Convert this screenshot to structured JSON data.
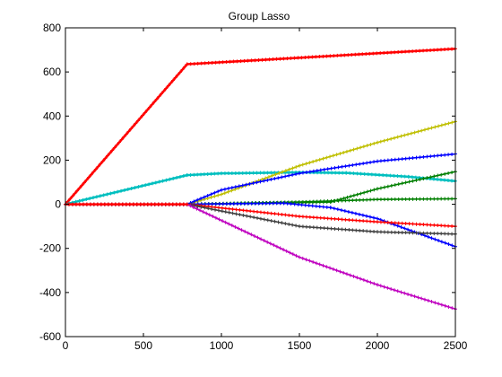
{
  "chart_data": {
    "type": "line",
    "title": "Group Lasso",
    "xlabel": "",
    "ylabel": "",
    "xlim": [
      0,
      2500
    ],
    "ylim": [
      -600,
      800
    ],
    "xticks": [
      0,
      500,
      1000,
      1500,
      2000,
      2500
    ],
    "yticks": [
      -600,
      -400,
      -200,
      0,
      200,
      400,
      600,
      800
    ],
    "grid": false,
    "legend": "none",
    "marker": "asterisk",
    "series": [
      {
        "color": "#ff0000",
        "x": [
          0,
          780,
          2500
        ],
        "values": [
          0,
          635,
          705
        ]
      },
      {
        "color": "#00bfbf",
        "x": [
          0,
          780,
          1000,
          1500,
          1800,
          2200,
          2500
        ],
        "values": [
          0,
          132,
          140,
          145,
          142,
          125,
          105
        ]
      },
      {
        "color": "#bfbf00",
        "x": [
          0,
          780,
          1000,
          1500,
          2000,
          2500
        ],
        "values": [
          0,
          0,
          45,
          175,
          280,
          375
        ]
      },
      {
        "color": "#0000ff",
        "x": [
          0,
          780,
          1000,
          1500,
          2000,
          2500
        ],
        "values": [
          0,
          0,
          65,
          140,
          195,
          228
        ]
      },
      {
        "color": "#007f00",
        "x": [
          0,
          780,
          1700,
          2000,
          2500
        ],
        "values": [
          0,
          0,
          10,
          70,
          148
        ]
      },
      {
        "color": "#007f00",
        "x": [
          0,
          780,
          1500,
          2000,
          2500
        ],
        "values": [
          0,
          0,
          10,
          22,
          25
        ]
      },
      {
        "color": "#0000ff",
        "x": [
          0,
          780,
          1400,
          1700,
          2000,
          2500
        ],
        "values": [
          0,
          0,
          5,
          -15,
          -65,
          -192
        ]
      },
      {
        "color": "#ff0000",
        "x": [
          0,
          780,
          1500,
          2000,
          2500
        ],
        "values": [
          0,
          0,
          -55,
          -80,
          -100
        ]
      },
      {
        "color": "#404040",
        "x": [
          0,
          780,
          1500,
          2000,
          2500
        ],
        "values": [
          0,
          0,
          -100,
          -125,
          -135
        ]
      },
      {
        "color": "#bf00bf",
        "x": [
          0,
          780,
          1500,
          2000,
          2500
        ],
        "values": [
          0,
          0,
          -240,
          -365,
          -475
        ]
      },
      {
        "color": "#ff0000",
        "x": [
          0,
          780
        ],
        "values": [
          0,
          0
        ]
      }
    ]
  }
}
